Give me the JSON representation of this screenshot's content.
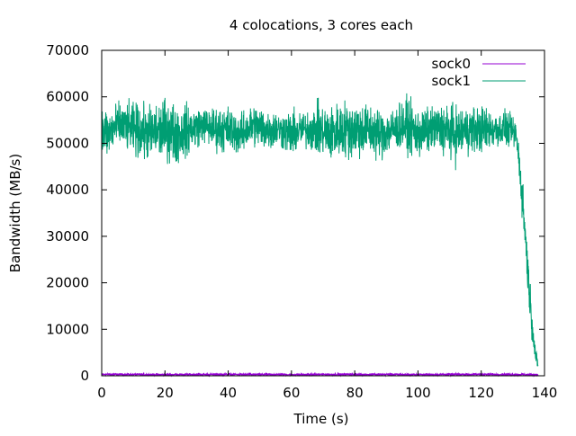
{
  "chart_data": {
    "type": "line",
    "title": "4 colocations, 3 cores each",
    "xlabel": "Time (s)",
    "ylabel": "Bandwidth (MB/s)",
    "xlim": [
      0,
      140
    ],
    "ylim": [
      0,
      70000
    ],
    "xticks": [
      0,
      20,
      40,
      60,
      80,
      100,
      120,
      140
    ],
    "yticks": [
      0,
      10000,
      20000,
      30000,
      40000,
      50000,
      60000,
      70000
    ],
    "grid": false,
    "legend_position": "top-right",
    "series": [
      {
        "name": "sock0",
        "color": "#9400d3",
        "x": [
          0,
          20,
          40,
          60,
          80,
          100,
          120,
          138
        ],
        "y": [
          300,
          250,
          300,
          250,
          300,
          250,
          300,
          250
        ],
        "noise": 250
      },
      {
        "name": "sock1",
        "color": "#009e73",
        "x": [
          0,
          2,
          5,
          10,
          15,
          20,
          24,
          28,
          32,
          36,
          40,
          44,
          48,
          52,
          56,
          60,
          64,
          68,
          72,
          76,
          80,
          84,
          88,
          92,
          96,
          100,
          104,
          108,
          112,
          116,
          120,
          124,
          128,
          131,
          132,
          133,
          134,
          135,
          136,
          137,
          138
        ],
        "y": [
          53000,
          52000,
          54000,
          53000,
          52000,
          53000,
          52000,
          53000,
          54000,
          53000,
          53000,
          52000,
          54000,
          53000,
          53000,
          52000,
          53000,
          53000,
          52000,
          53000,
          53000,
          53000,
          52000,
          53000,
          54000,
          52000,
          53000,
          53000,
          52000,
          53000,
          53000,
          53000,
          53000,
          52000,
          46000,
          38000,
          30000,
          20000,
          12000,
          5000,
          2000
        ],
        "noise": [
          6500,
          6000,
          5000,
          6000,
          6500,
          7000,
          7000,
          5500,
          4000,
          5000,
          5500,
          4500,
          5000,
          5000,
          4000,
          5500,
          4000,
          6000,
          6500,
          6500,
          7000,
          6000,
          6000,
          5000,
          6000,
          6000,
          5000,
          6000,
          6500,
          5500,
          5500,
          4500,
          4000,
          3500,
          4000,
          5000,
          6000,
          5000,
          4000,
          2500,
          800
        ]
      }
    ]
  }
}
